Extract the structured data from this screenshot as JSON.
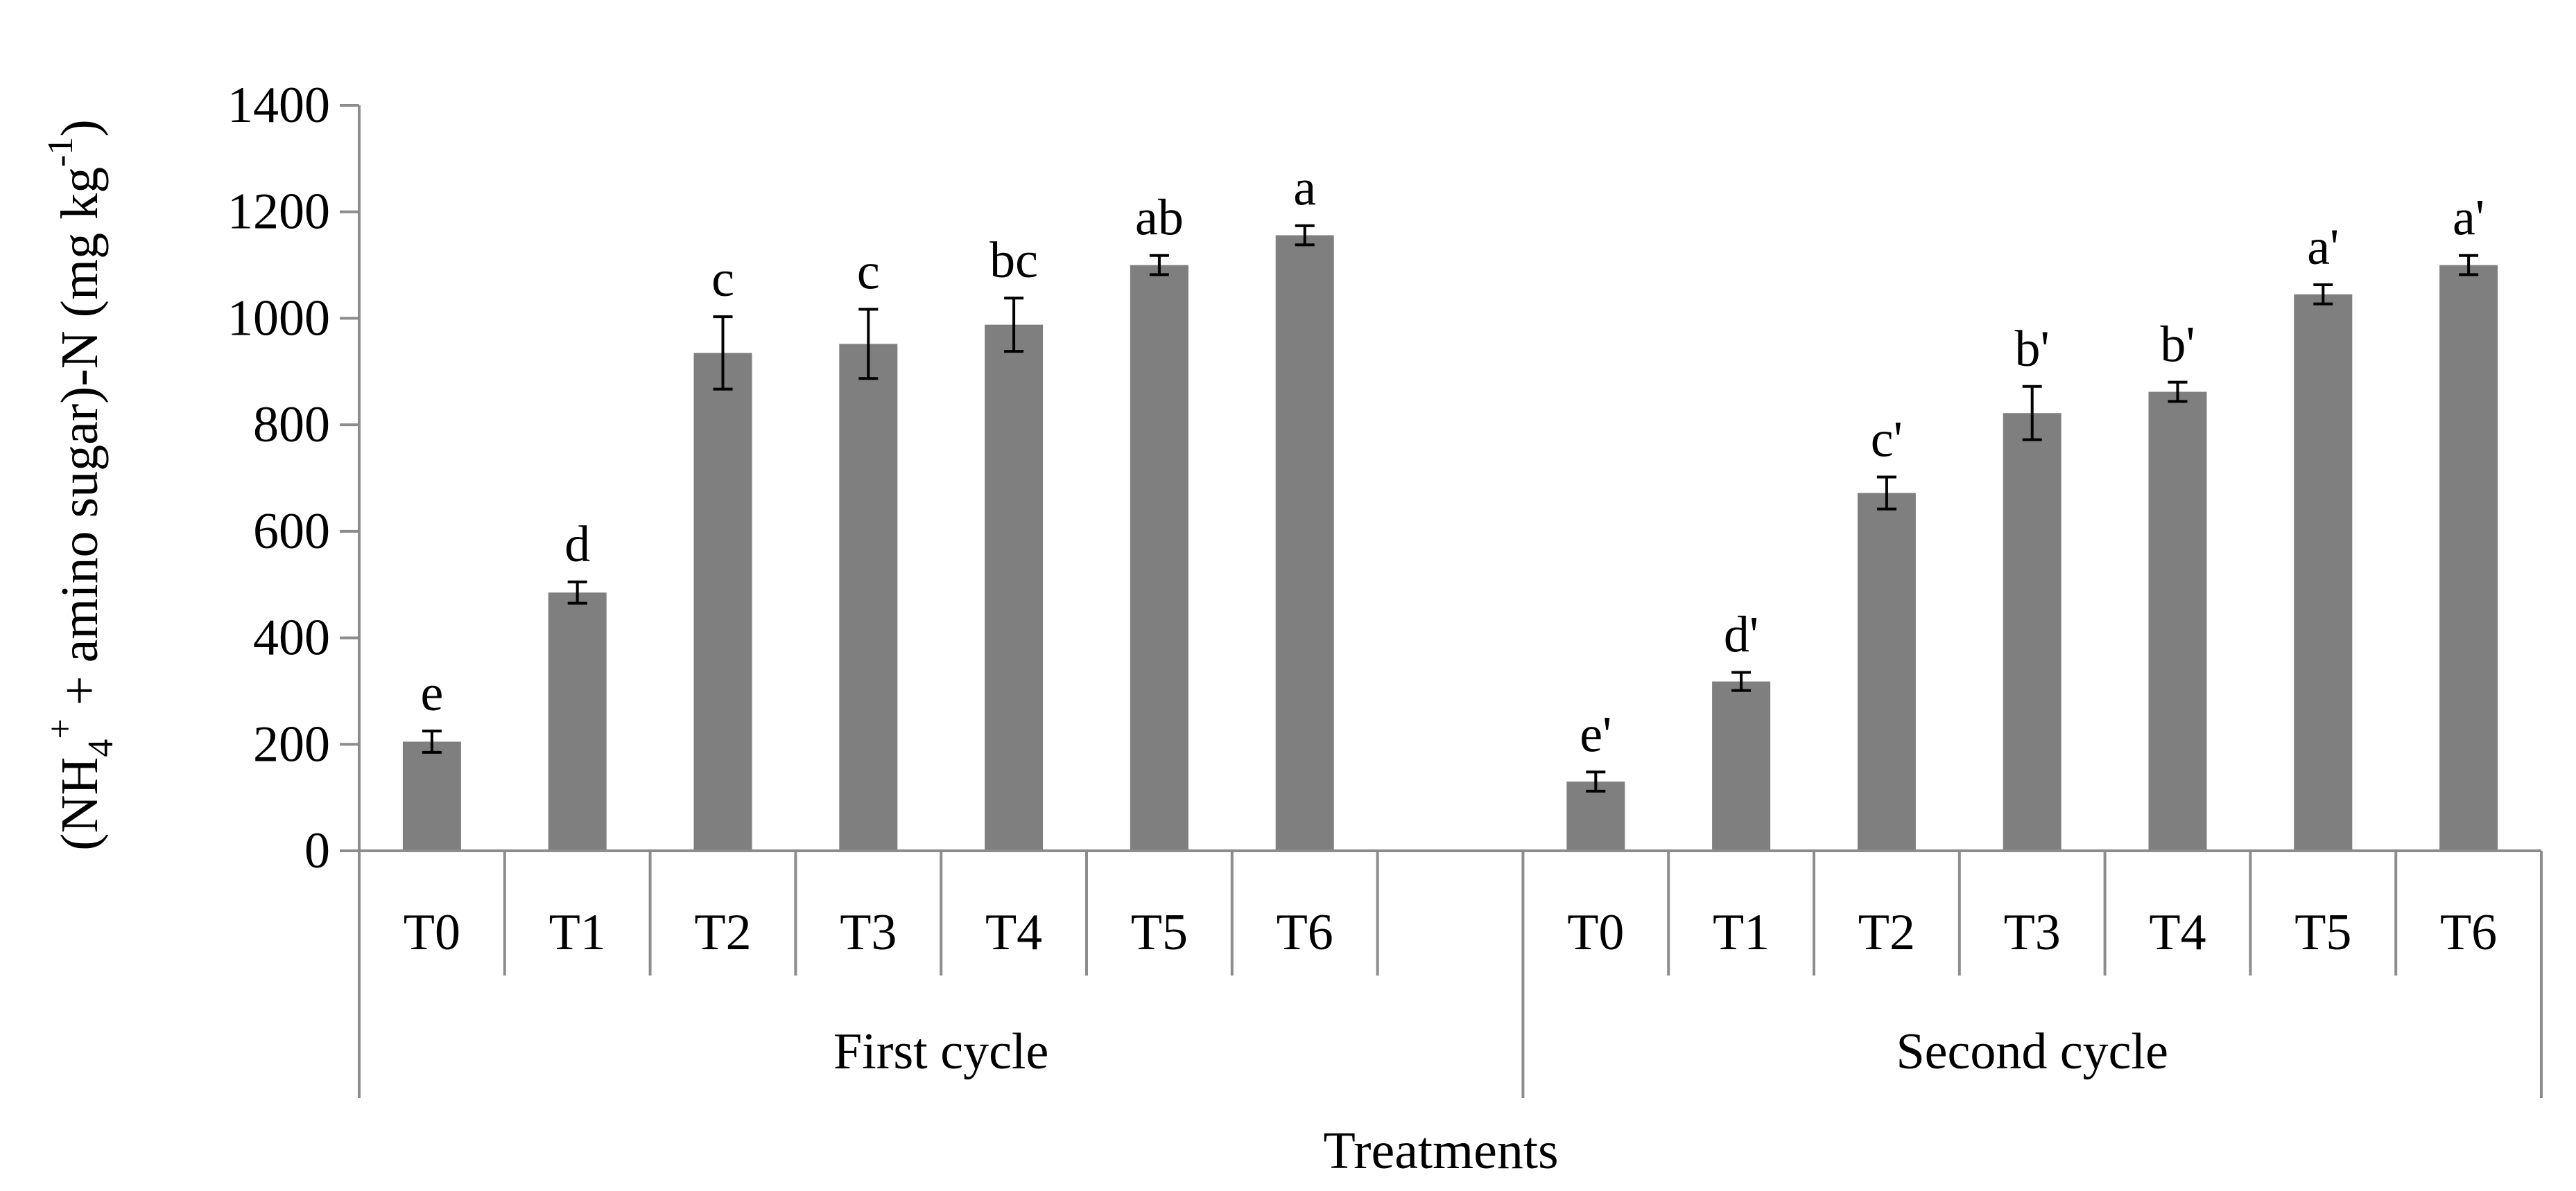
{
  "chart_data": {
    "type": "bar",
    "title": "",
    "ylabel_parts": {
      "a": "(NH",
      "sub": "4",
      "sup": "+",
      "b": " + amino sugar)-N (mg kg",
      "sup2": "-1",
      "c": ")"
    },
    "xlabel": "Treatments",
    "ylim": [
      0,
      1400
    ],
    "yticks": [
      0,
      200,
      400,
      600,
      800,
      1000,
      1200,
      1400
    ],
    "bar_color": "#7f7f7f",
    "groups": [
      {
        "name": "First cycle",
        "categories": [
          "T0",
          "T1",
          "T2",
          "T3",
          "T4",
          "T5",
          "T6"
        ],
        "values": [
          205,
          485,
          935,
          952,
          988,
          1100,
          1156
        ],
        "errors": [
          20,
          20,
          68,
          65,
          50,
          18,
          18
        ],
        "letters": [
          "e",
          "d",
          "c",
          "c",
          "bc",
          "ab",
          "a"
        ]
      },
      {
        "name": "Second cycle",
        "categories": [
          "T0",
          "T1",
          "T2",
          "T3",
          "T4",
          "T5",
          "T6"
        ],
        "values": [
          130,
          318,
          672,
          822,
          862,
          1045,
          1100
        ],
        "errors": [
          18,
          17,
          30,
          50,
          18,
          18,
          18
        ],
        "letters": [
          "e'",
          "d'",
          "c'",
          "b'",
          "b'",
          "a'",
          "a'"
        ]
      }
    ]
  }
}
